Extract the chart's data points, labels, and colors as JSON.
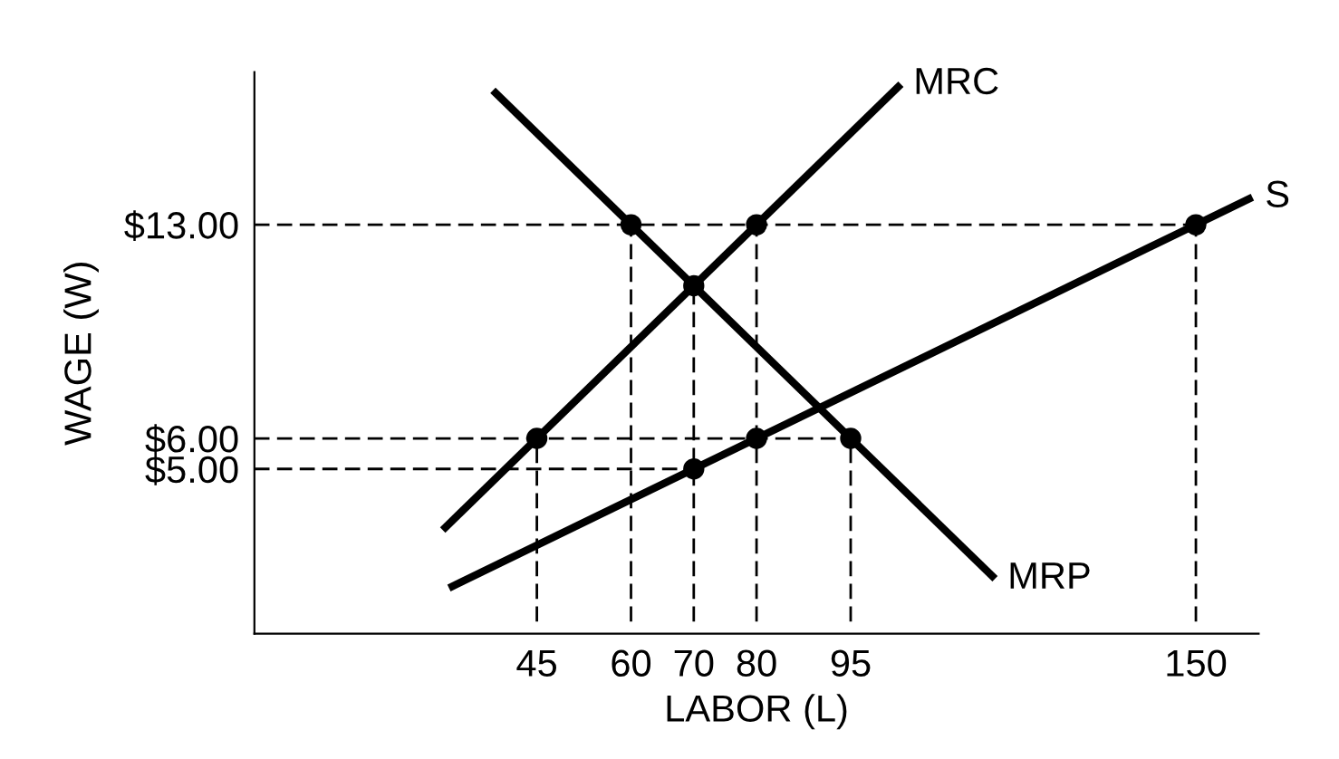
{
  "chart_data": {
    "type": "line",
    "xlabel": "LABOR (L)",
    "ylabel": "WAGE (W)",
    "xlim": [
      0,
      160
    ],
    "ylim": [
      -0.4,
      18
    ],
    "xticks": [
      45,
      60,
      70,
      80,
      95,
      150
    ],
    "yticks": [
      {
        "value": 5,
        "label": "$5.00"
      },
      {
        "value": 6,
        "label": "$6.00"
      },
      {
        "value": 13,
        "label": "$13.00"
      }
    ],
    "line_style": "solid",
    "marker": "none",
    "series": [
      {
        "color": "#000000",
        "line_style": "dashed",
        "x": [
          0,
          150
        ],
        "values": [
          13,
          13
        ]
      },
      {
        "color": "#000000",
        "line_style": "dashed",
        "x": [
          0,
          95
        ],
        "values": [
          6,
          6
        ]
      },
      {
        "color": "#000000",
        "line_style": "dashed",
        "x": [
          0,
          70
        ],
        "values": [
          5,
          5
        ]
      },
      {
        "color": "#000000",
        "line_style": "dashed",
        "x": [
          45,
          45
        ],
        "values": [
          0,
          6
        ]
      },
      {
        "color": "#000000",
        "line_style": "dashed",
        "x": [
          60,
          60
        ],
        "values": [
          0,
          13
        ]
      },
      {
        "color": "#000000",
        "line_style": "dashed",
        "x": [
          70,
          70
        ],
        "values": [
          0,
          11
        ]
      },
      {
        "color": "#000000",
        "line_style": "dashed",
        "x": [
          80,
          80
        ],
        "values": [
          0,
          13
        ]
      },
      {
        "color": "#000000",
        "line_style": "dashed",
        "x": [
          95,
          95
        ],
        "values": [
          0,
          6
        ]
      },
      {
        "color": "#000000",
        "line_style": "dashed",
        "x": [
          150,
          150
        ],
        "values": [
          0,
          13
        ]
      },
      {
        "name": "MRC",
        "color": "#000000",
        "x": [
          30,
          103
        ],
        "values": [
          3,
          17.6
        ]
      },
      {
        "name": "MRP",
        "color": "#000000",
        "x": [
          38,
          118
        ],
        "values": [
          17.4,
          1.4
        ]
      },
      {
        "name": "S",
        "color": "#000000",
        "x": [
          31,
          159
        ],
        "values": [
          1.1,
          13.9
        ]
      },
      {
        "type": "scatter",
        "color": "#000000",
        "marker": "circle",
        "x": [
          45,
          60,
          70,
          80,
          95,
          70,
          80,
          150
        ],
        "values": [
          6,
          13,
          11,
          13,
          6,
          5,
          6,
          13
        ]
      }
    ]
  }
}
